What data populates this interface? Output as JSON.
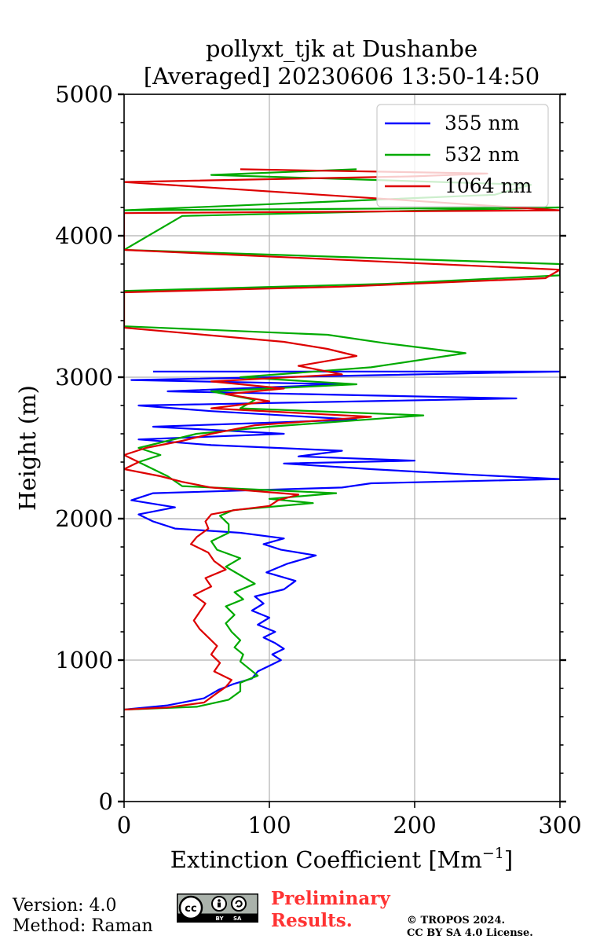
{
  "colors": {
    "s355": "#0000ff",
    "s532": "#00aa00",
    "s1064": "#dd0000",
    "prelim": "#ff3333",
    "grid": "#b0b0b0"
  },
  "chart_data": {
    "type": "line",
    "title_line1": "pollyxt_tjk at Dushanbe",
    "title_line2": "[Averaged] 20230606 13:50-14:50",
    "xlabel": "Extinction Coefficient [Mm",
    "xlabel_sup": "−1",
    "xlabel_end": "]",
    "ylabel": "Height (m)",
    "xlim": [
      0,
      300
    ],
    "ylim": [
      0,
      5000
    ],
    "xticks": [
      0,
      100,
      200,
      300
    ],
    "yticks": [
      0,
      1000,
      2000,
      3000,
      4000,
      5000
    ],
    "xtick_labels": [
      "0",
      "100",
      "200",
      "300"
    ],
    "ytick_labels": [
      "0",
      "1000",
      "2000",
      "3000",
      "4000",
      "5000"
    ],
    "grid": true,
    "legend_position": "top-right",
    "series": [
      {
        "name": "355 nm",
        "color_key": "s355",
        "points": [
          [
            0,
            650
          ],
          [
            30,
            680
          ],
          [
            55,
            730
          ],
          [
            65,
            790
          ],
          [
            75,
            830
          ],
          [
            88,
            870
          ],
          [
            92,
            920
          ],
          [
            100,
            960
          ],
          [
            108,
            1000
          ],
          [
            102,
            1040
          ],
          [
            110,
            1080
          ],
          [
            104,
            1120
          ],
          [
            96,
            1160
          ],
          [
            104,
            1200
          ],
          [
            92,
            1250
          ],
          [
            100,
            1300
          ],
          [
            88,
            1350
          ],
          [
            96,
            1400
          ],
          [
            90,
            1450
          ],
          [
            110,
            1500
          ],
          [
            118,
            1560
          ],
          [
            98,
            1620
          ],
          [
            112,
            1680
          ],
          [
            132,
            1740
          ],
          [
            108,
            1780
          ],
          [
            96,
            1820
          ],
          [
            110,
            1860
          ],
          [
            80,
            1900
          ],
          [
            35,
            1930
          ],
          [
            20,
            1980
          ],
          [
            10,
            2030
          ],
          [
            35,
            2080
          ],
          [
            5,
            2130
          ],
          [
            20,
            2180
          ],
          [
            150,
            2220
          ],
          [
            170,
            2250
          ],
          [
            300,
            2280
          ],
          [
            240,
            2310
          ],
          [
            170,
            2350
          ],
          [
            110,
            2390
          ],
          [
            200,
            2410
          ],
          [
            120,
            2440
          ],
          [
            150,
            2480
          ],
          [
            60,
            2520
          ],
          [
            10,
            2560
          ],
          [
            110,
            2600
          ],
          [
            20,
            2650
          ],
          [
            160,
            2700
          ],
          [
            60,
            2760
          ],
          [
            10,
            2800
          ],
          [
            270,
            2850
          ],
          [
            30,
            2900
          ],
          [
            150,
            2950
          ],
          [
            5,
            2980
          ],
          [
            300,
            3040
          ],
          [
            20,
            3040
          ]
        ]
      },
      {
        "name": "532 nm",
        "color_key": "s532",
        "points": [
          [
            0,
            650
          ],
          [
            50,
            670
          ],
          [
            72,
            720
          ],
          [
            80,
            780
          ],
          [
            80,
            840
          ],
          [
            92,
            890
          ],
          [
            86,
            940
          ],
          [
            80,
            990
          ],
          [
            82,
            1040
          ],
          [
            76,
            1090
          ],
          [
            80,
            1140
          ],
          [
            74,
            1200
          ],
          [
            70,
            1260
          ],
          [
            76,
            1320
          ],
          [
            70,
            1380
          ],
          [
            82,
            1430
          ],
          [
            76,
            1480
          ],
          [
            90,
            1540
          ],
          [
            80,
            1600
          ],
          [
            70,
            1660
          ],
          [
            80,
            1720
          ],
          [
            64,
            1780
          ],
          [
            60,
            1840
          ],
          [
            72,
            1900
          ],
          [
            72,
            1960
          ],
          [
            66,
            2020
          ],
          [
            75,
            2060
          ],
          [
            130,
            2110
          ],
          [
            100,
            2140
          ],
          [
            146,
            2180
          ],
          [
            40,
            2230
          ],
          [
            30,
            2300
          ],
          [
            20,
            2350
          ],
          [
            10,
            2400
          ],
          [
            25,
            2450
          ],
          [
            10,
            2500
          ],
          [
            30,
            2550
          ],
          [
            50,
            2600
          ],
          [
            100,
            2650
          ],
          [
            206,
            2730
          ],
          [
            80,
            2780
          ],
          [
            90,
            2840
          ],
          [
            60,
            2900
          ],
          [
            160,
            2950
          ],
          [
            80,
            3000
          ],
          [
            170,
            3070
          ],
          [
            235,
            3170
          ],
          [
            180,
            3240
          ],
          [
            140,
            3300
          ],
          [
            0,
            3360
          ],
          [
            0,
            3610
          ],
          [
            180,
            3660
          ],
          [
            300,
            3720
          ],
          [
            300,
            3800
          ],
          [
            0,
            3900
          ],
          [
            40,
            4140
          ],
          [
            300,
            4200
          ],
          [
            0,
            4180
          ],
          [
            255,
            4290
          ],
          [
            280,
            4360
          ],
          [
            60,
            4430
          ],
          [
            160,
            4470
          ]
        ]
      },
      {
        "name": "1064 nm",
        "color_key": "s1064",
        "points": [
          [
            0,
            650
          ],
          [
            30,
            665
          ],
          [
            55,
            700
          ],
          [
            63,
            760
          ],
          [
            70,
            810
          ],
          [
            74,
            860
          ],
          [
            62,
            920
          ],
          [
            66,
            980
          ],
          [
            60,
            1040
          ],
          [
            64,
            1100
          ],
          [
            58,
            1160
          ],
          [
            52,
            1220
          ],
          [
            48,
            1280
          ],
          [
            52,
            1340
          ],
          [
            56,
            1400
          ],
          [
            48,
            1460
          ],
          [
            60,
            1520
          ],
          [
            56,
            1580
          ],
          [
            70,
            1640
          ],
          [
            62,
            1700
          ],
          [
            58,
            1760
          ],
          [
            46,
            1820
          ],
          [
            50,
            1870
          ],
          [
            58,
            1930
          ],
          [
            56,
            1980
          ],
          [
            60,
            2030
          ],
          [
            76,
            2060
          ],
          [
            100,
            2090
          ],
          [
            106,
            2130
          ],
          [
            120,
            2170
          ],
          [
            60,
            2220
          ],
          [
            40,
            2260
          ],
          [
            25,
            2300
          ],
          [
            0,
            2350
          ],
          [
            10,
            2400
          ],
          [
            0,
            2450
          ],
          [
            15,
            2500
          ],
          [
            40,
            2550
          ],
          [
            60,
            2600
          ],
          [
            90,
            2660
          ],
          [
            170,
            2720
          ],
          [
            60,
            2780
          ],
          [
            100,
            2830
          ],
          [
            70,
            2880
          ],
          [
            110,
            2920
          ],
          [
            60,
            2970
          ],
          [
            150,
            3020
          ],
          [
            120,
            3080
          ],
          [
            160,
            3150
          ],
          [
            140,
            3200
          ],
          [
            110,
            3250
          ],
          [
            0,
            3350
          ],
          [
            0,
            3600
          ],
          [
            150,
            3640
          ],
          [
            290,
            3700
          ],
          [
            300,
            3760
          ],
          [
            0,
            3900
          ],
          [
            0,
            4160
          ],
          [
            300,
            4180
          ],
          [
            0,
            4380
          ],
          [
            200,
            4420
          ],
          [
            250,
            4440
          ],
          [
            80,
            4470
          ]
        ]
      }
    ]
  },
  "footer": {
    "version": "Version: 4.0",
    "method": "Method: Raman",
    "license_badge_text": "BY SA",
    "preliminary_line1": "Preliminary",
    "preliminary_line2": "Results.",
    "copyright_line1": "© TROPOS 2024.",
    "copyright_line2": "CC BY SA 4.0 License."
  }
}
